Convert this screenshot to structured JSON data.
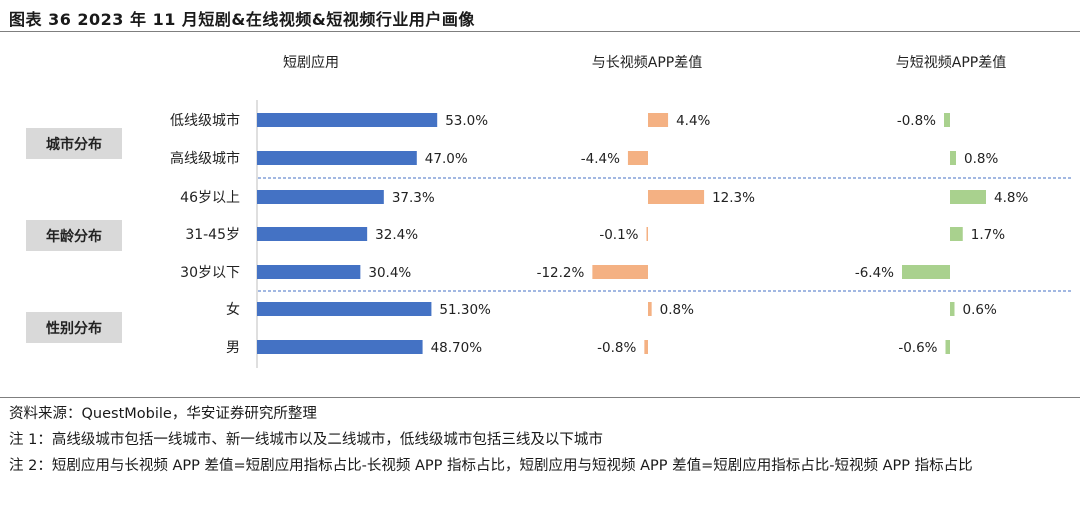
{
  "title": "图表 36 2023 年 11 月短剧&在线视频&短视频行业用户画像",
  "chart_data": {
    "type": "bar",
    "orientation": "horizontal",
    "panel_titles": [
      "短剧应用",
      "与长视频APP差值",
      "与短视频APP差值"
    ],
    "groups": [
      {
        "label": "城市分布",
        "rows": [
          "低线级城市",
          "高线级城市"
        ]
      },
      {
        "label": "年龄分布",
        "rows": [
          "46岁以上",
          "31-45岁",
          "30岁以下"
        ]
      },
      {
        "label": "性别分布",
        "rows": [
          "女",
          "男"
        ]
      }
    ],
    "categories": [
      "低线级城市",
      "高线级城市",
      "46岁以上",
      "31-45岁",
      "30岁以下",
      "女",
      "男"
    ],
    "series": [
      {
        "name": "短剧应用",
        "values": [
          53.0,
          47.0,
          37.3,
          32.4,
          30.4,
          51.3,
          48.7
        ],
        "labels": [
          "53.0%",
          "47.0%",
          "37.3%",
          "32.4%",
          "30.4%",
          "51.30%",
          "48.70%"
        ],
        "color": "#4472c4"
      },
      {
        "name": "与长视频APP差值",
        "values": [
          4.4,
          -4.4,
          12.3,
          -0.1,
          -12.2,
          0.8,
          -0.8
        ],
        "labels": [
          "4.4%",
          "-4.4%",
          "12.3%",
          "-0.1%",
          "-12.2%",
          "0.8%",
          "-0.8%"
        ],
        "color": "#f4b183"
      },
      {
        "name": "与短视频APP差值",
        "values": [
          -0.8,
          0.8,
          4.8,
          1.7,
          -6.4,
          0.6,
          -0.6
        ],
        "labels": [
          "-0.8%",
          "0.8%",
          "4.8%",
          "1.7%",
          "-6.4%",
          "0.6%",
          "-0.6%"
        ],
        "color": "#a9d18e"
      }
    ]
  },
  "colors": {
    "group_label_bg": "#d9d9d9",
    "separator": "#4472c4",
    "axis": "#bfbfbf"
  },
  "notes": {
    "source": "资料来源：QuestMobile，华安证券研究所整理",
    "note1": "注 1：高线级城市包括一线城市、新一线城市以及二线城市，低线级城市包括三线及以下城市",
    "note2": "注 2：短剧应用与长视频 APP 差值=短剧应用指标占比-长视频 APP 指标占比，短剧应用与短视频 APP 差值=短剧应用指标占比-短视频 APP 指标占比"
  }
}
